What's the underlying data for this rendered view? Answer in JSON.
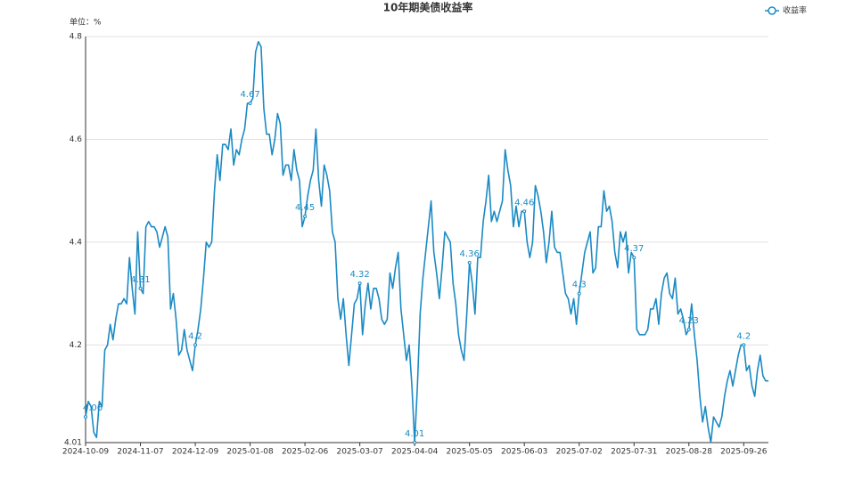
{
  "chart_data": {
    "type": "line",
    "title": "10年期美债收益率",
    "subtitle": "单位：%",
    "categories": [
      "2024-10-09",
      null,
      null,
      null,
      null,
      null,
      null,
      null,
      null,
      null,
      null,
      null,
      null,
      null,
      null,
      null,
      null,
      null,
      null,
      null,
      "2024-11-07",
      null,
      null,
      null,
      null,
      null,
      null,
      null,
      null,
      null,
      null,
      null,
      null,
      null,
      null,
      null,
      null,
      null,
      null,
      null,
      "2024-12-09",
      null,
      null,
      null,
      null,
      null,
      null,
      null,
      null,
      null,
      null,
      null,
      null,
      null,
      null,
      null,
      null,
      null,
      null,
      null,
      "2025-01-08",
      null,
      null,
      null,
      null,
      null,
      null,
      null,
      null,
      null,
      null,
      null,
      null,
      null,
      null,
      null,
      null,
      null,
      null,
      null,
      "2025-02-06",
      null,
      null,
      null,
      null,
      null,
      null,
      null,
      null,
      null,
      null,
      null,
      null,
      null,
      null,
      null,
      null,
      null,
      null,
      null,
      "2025-03-07",
      null,
      null,
      null,
      null,
      null,
      null,
      null,
      null,
      null,
      null,
      null,
      null,
      null,
      null,
      null,
      null,
      null,
      null,
      null,
      "2025-04-04",
      null,
      null,
      null,
      null,
      null,
      null,
      null,
      null,
      null,
      null,
      null,
      null,
      null,
      null,
      null,
      null,
      null,
      null,
      null,
      "2025-05-05",
      null,
      null,
      null,
      null,
      null,
      null,
      null,
      null,
      null,
      null,
      null,
      null,
      null,
      null,
      null,
      null,
      null,
      null,
      null,
      "2025-06-03",
      null,
      null,
      null,
      null,
      null,
      null,
      null,
      null,
      null,
      null,
      null,
      null,
      null,
      null,
      null,
      null,
      null,
      null,
      null,
      "2025-07-02",
      null,
      null,
      null,
      null,
      null,
      null,
      null,
      null,
      null,
      null,
      null,
      null,
      null,
      null,
      null,
      null,
      null,
      null,
      null,
      "2025-07-31",
      null,
      null,
      null,
      null,
      null,
      null,
      null,
      null,
      null,
      null,
      null,
      null,
      null,
      null,
      null,
      null,
      null,
      null,
      null,
      "2025-08-28",
      null,
      null,
      null,
      null,
      null,
      null,
      null,
      null,
      null,
      null,
      null,
      null,
      null,
      null,
      null,
      null,
      null,
      null,
      null,
      "2025-09-26",
      null,
      null,
      null,
      null,
      null,
      null,
      null,
      null,
      null
    ],
    "series": [
      {
        "name": "收益率",
        "color": "#1b8ac4",
        "values": [
          4.06,
          4.09,
          4.08,
          4.03,
          4.02,
          4.09,
          4.08,
          4.19,
          4.2,
          4.24,
          4.21,
          4.25,
          4.28,
          4.28,
          4.29,
          4.28,
          4.37,
          4.31,
          4.26,
          4.42,
          4.31,
          4.3,
          4.43,
          4.44,
          4.43,
          4.43,
          4.42,
          4.39,
          4.41,
          4.43,
          4.41,
          4.27,
          4.3,
          4.25,
          4.18,
          4.19,
          4.23,
          4.19,
          4.17,
          4.15,
          4.2,
          4.23,
          4.27,
          4.33,
          4.4,
          4.39,
          4.4,
          4.5,
          4.57,
          4.52,
          4.59,
          4.59,
          4.58,
          4.62,
          4.55,
          4.58,
          4.57,
          4.6,
          4.62,
          4.67,
          4.67,
          4.68,
          4.77,
          4.79,
          4.78,
          4.66,
          4.61,
          4.61,
          4.57,
          4.6,
          4.65,
          4.63,
          4.53,
          4.55,
          4.55,
          4.52,
          4.58,
          4.54,
          4.52,
          4.43,
          4.45,
          4.49,
          4.52,
          4.54,
          4.62,
          4.52,
          4.47,
          4.55,
          4.53,
          4.5,
          4.42,
          4.4,
          4.29,
          4.25,
          4.29,
          4.22,
          4.16,
          4.22,
          4.28,
          4.29,
          4.32,
          4.22,
          4.28,
          4.32,
          4.27,
          4.31,
          4.31,
          4.29,
          4.25,
          4.24,
          4.25,
          4.34,
          4.31,
          4.35,
          4.38,
          4.27,
          4.22,
          4.17,
          4.2,
          4.12,
          4.01,
          4.12,
          4.26,
          4.33,
          4.38,
          4.43,
          4.48,
          4.38,
          4.34,
          4.29,
          4.35,
          4.42,
          4.41,
          4.4,
          4.32,
          4.28,
          4.22,
          4.19,
          4.17,
          4.26,
          4.36,
          4.32,
          4.26,
          4.37,
          4.37,
          4.44,
          4.48,
          4.53,
          4.44,
          4.46,
          4.44,
          4.46,
          4.48,
          4.58,
          4.54,
          4.51,
          4.43,
          4.47,
          4.43,
          4.46,
          4.46,
          4.4,
          4.37,
          4.4,
          4.51,
          4.49,
          4.46,
          4.42,
          4.36,
          4.4,
          4.46,
          4.39,
          4.38,
          4.38,
          4.34,
          4.3,
          4.29,
          4.26,
          4.29,
          4.24,
          4.3,
          4.34,
          4.38,
          4.4,
          4.42,
          4.34,
          4.35,
          4.43,
          4.43,
          4.5,
          4.46,
          4.47,
          4.44,
          4.38,
          4.35,
          4.42,
          4.4,
          4.42,
          4.34,
          4.38,
          4.37,
          4.23,
          4.22,
          4.22,
          4.22,
          4.23,
          4.27,
          4.27,
          4.29,
          4.24,
          4.3,
          4.33,
          4.34,
          4.3,
          4.29,
          4.33,
          4.26,
          4.27,
          4.25,
          4.22,
          4.23,
          4.28,
          4.22,
          4.17,
          4.1,
          4.05,
          4.08,
          4.04,
          4.01,
          4.06,
          4.05,
          4.04,
          4.06,
          4.1,
          4.13,
          4.15,
          4.12,
          4.15,
          4.18,
          4.2,
          4.2,
          4.15,
          4.16,
          4.12,
          4.1,
          4.15,
          4.18,
          4.14,
          4.13,
          4.13
        ]
      }
    ],
    "ylim": [
      4.01,
      4.8
    ],
    "yticks": [
      4.01,
      4.2,
      4.4,
      4.6,
      4.8
    ],
    "grid": true,
    "legend": "top-right"
  }
}
